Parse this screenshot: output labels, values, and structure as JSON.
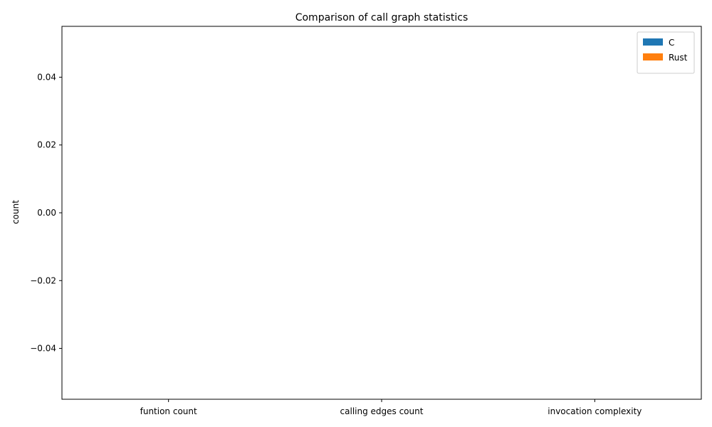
{
  "chart_data": {
    "type": "bar",
    "title": "Comparison of call graph statistics",
    "xlabel": "",
    "ylabel": "count",
    "categories": [
      "funtion count",
      "calling edges count",
      "invocation complexity"
    ],
    "series": [
      {
        "name": "C",
        "color": "#1f77b4",
        "values": [
          0,
          0,
          0
        ]
      },
      {
        "name": "Rust",
        "color": "#ff7f0e",
        "values": [
          0,
          0,
          0
        ]
      }
    ],
    "ylim": [
      -0.055,
      0.055
    ],
    "yticks": [
      -0.04,
      -0.02,
      0.0,
      0.02,
      0.04
    ],
    "ytick_labels": [
      "−0.04",
      "−0.02",
      "0.00",
      "0.02",
      "0.04"
    ],
    "grid": false,
    "legend_position": "upper right"
  }
}
